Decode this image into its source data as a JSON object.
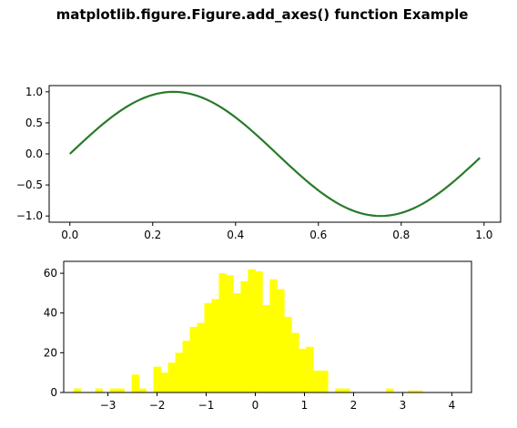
{
  "figure": {
    "title": "matplotlib.figure.Figure.add_axes() function Example"
  },
  "chart_data": [
    {
      "type": "line",
      "function": "sin(2*pi*x)",
      "x_start": 0.0,
      "x_end": 0.99,
      "x_step": 0.01,
      "color": "#2a7a2a",
      "xlim": [
        -0.05,
        1.04
      ],
      "ylim": [
        -1.1,
        1.1
      ],
      "xticks": [
        0.0,
        0.2,
        0.4,
        0.6,
        0.8,
        1.0
      ],
      "xtick_labels": [
        "0.0",
        "0.2",
        "0.4",
        "0.6",
        "0.8",
        "1.0"
      ],
      "yticks": [
        -1.0,
        -0.5,
        0.0,
        0.5,
        1.0
      ],
      "ytick_labels": [
        "−1.0",
        "−0.5",
        "0.0",
        "0.5",
        "1.0"
      ],
      "grid": false
    },
    {
      "type": "bar",
      "kind": "histogram",
      "color": "#ffff00",
      "bin_start": -3.85,
      "bin_width": 0.148,
      "values": [
        0,
        2,
        0,
        0,
        2,
        0,
        2,
        2,
        0,
        9,
        2,
        0,
        13,
        10,
        15,
        20,
        26,
        33,
        35,
        45,
        47,
        60,
        59,
        50,
        56,
        62,
        61,
        44,
        57,
        52,
        38,
        30,
        22,
        23,
        11,
        11,
        0,
        2,
        2,
        0,
        0,
        0,
        0,
        0,
        2,
        0,
        0,
        1,
        1
      ],
      "xlim": [
        -3.9,
        4.4
      ],
      "ylim": [
        0,
        66
      ],
      "xticks": [
        -3,
        -2,
        -1,
        0,
        1,
        2,
        3,
        4
      ],
      "xtick_labels": [
        "−3",
        "−2",
        "−1",
        "0",
        "1",
        "2",
        "3",
        "4"
      ],
      "yticks": [
        0,
        20,
        40,
        60
      ],
      "ytick_labels": [
        "0",
        "20",
        "40",
        "60"
      ],
      "grid": false
    }
  ]
}
